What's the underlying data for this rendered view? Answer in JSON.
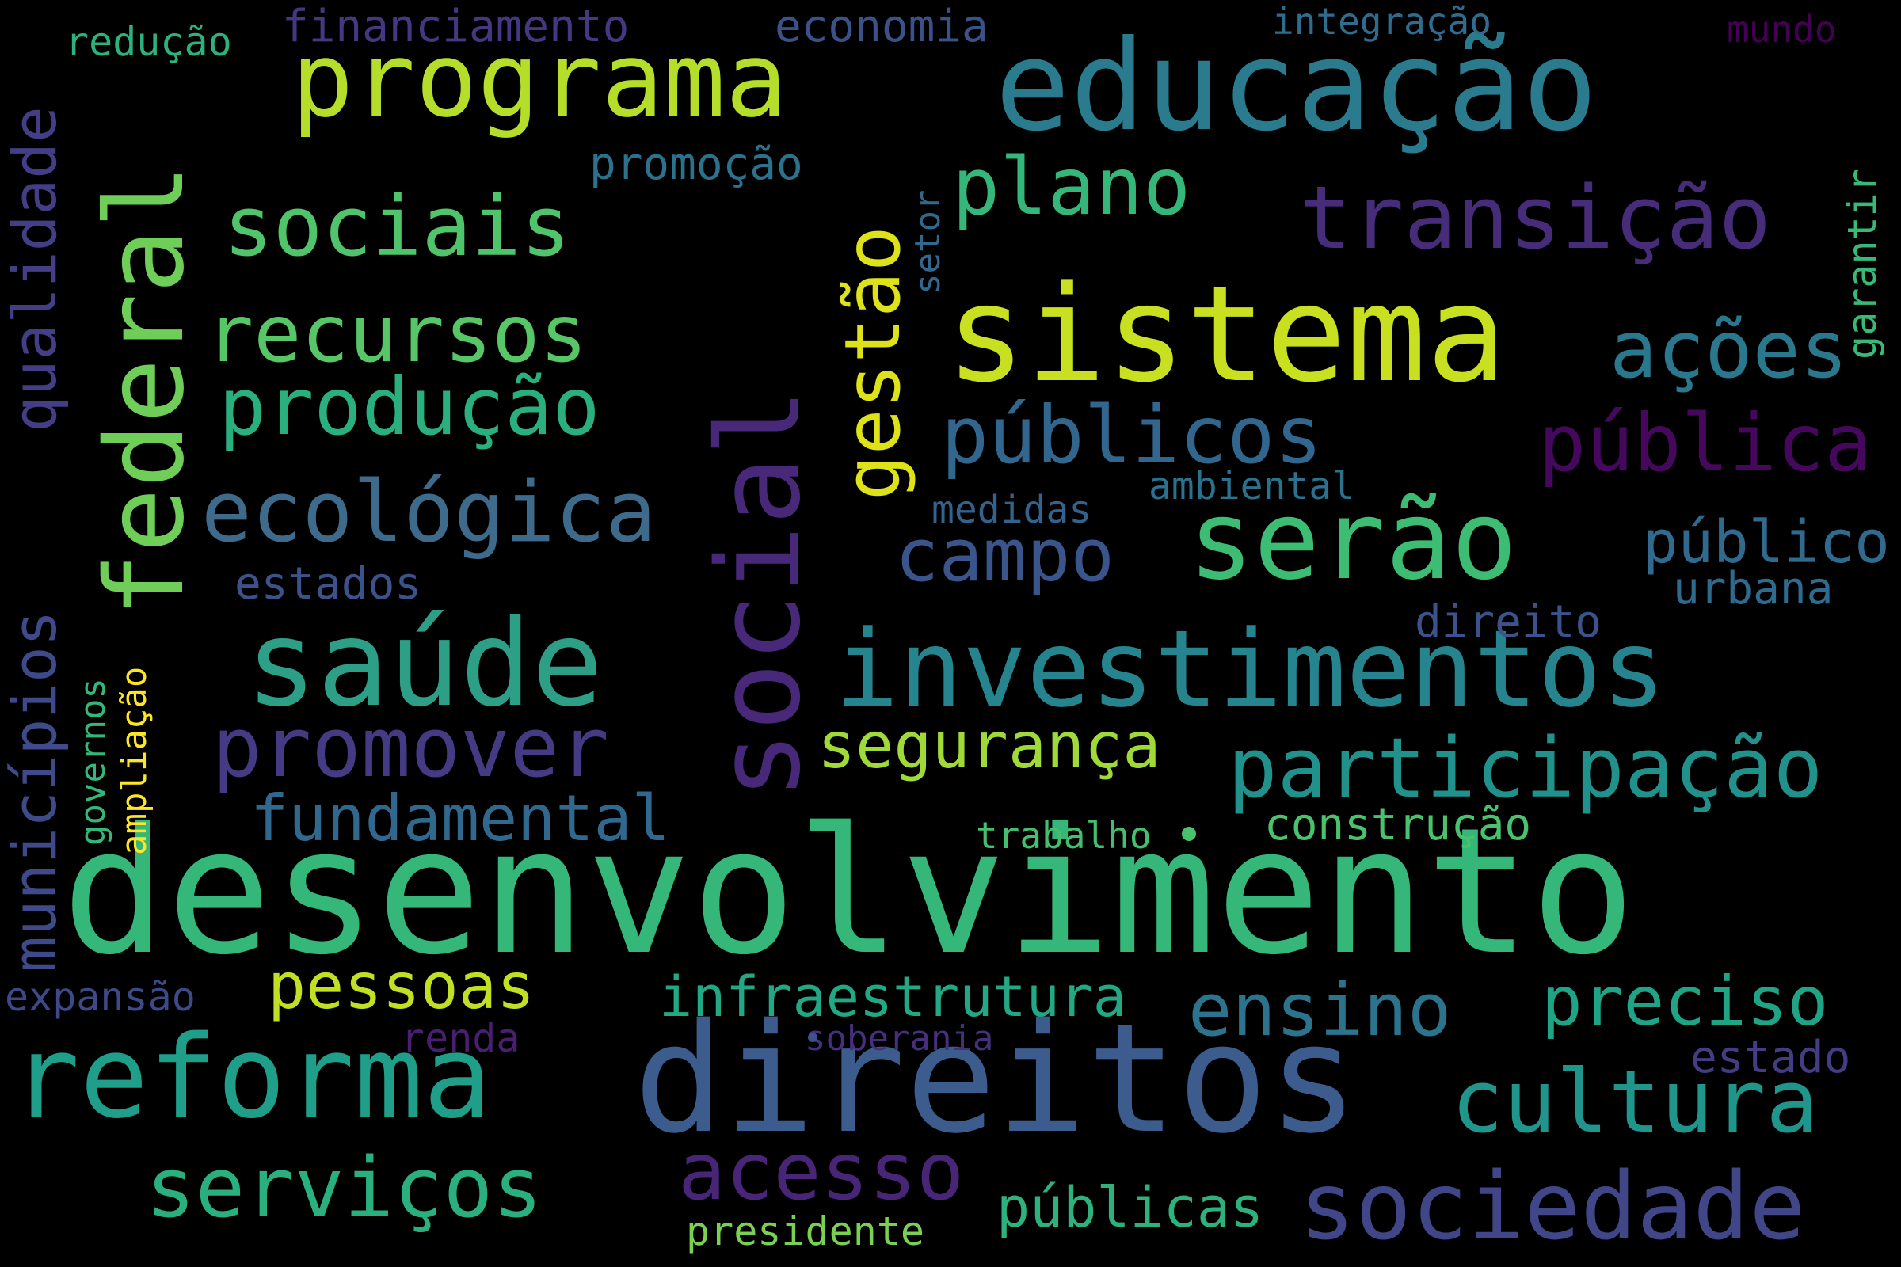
{
  "words": {
    "desenvolvimento": {
      "text": "desenvolvimento",
      "color": "#35b779"
    },
    "direitos": {
      "text": "direitos",
      "color": "#3b5c8c"
    },
    "social": {
      "text": "social",
      "color": "#482878"
    },
    "sistema": {
      "text": "sistema",
      "color": "#c8e020"
    },
    "educacao": {
      "text": "educação",
      "color": "#2a7b8e"
    },
    "investimentos": {
      "text": "investimentos",
      "color": "#26848e"
    },
    "saude": {
      "text": "saúde",
      "color": "#2e9f87"
    },
    "federal": {
      "text": "federal",
      "color": "#6ece58"
    },
    "reforma": {
      "text": "reforma",
      "color": "#1f9e89"
    },
    "serao": {
      "text": "serão",
      "color": "#3dbc74"
    },
    "programa": {
      "text": "programa",
      "color": "#b5de2b"
    },
    "sociedade": {
      "text": "sociedade",
      "color": "#404688"
    },
    "participacao": {
      "text": "participação",
      "color": "#21918c"
    },
    "transicao": {
      "text": "transição",
      "color": "#472c7a"
    },
    "cultura": {
      "text": "cultura",
      "color": "#1f958b"
    },
    "ecologica": {
      "text": "ecológica",
      "color": "#3e6a8b"
    },
    "promover": {
      "text": "promover",
      "color": "#443b84"
    },
    "servicos": {
      "text": "serviços",
      "color": "#2ab07f"
    },
    "acesso": {
      "text": "acesso",
      "color": "#482576"
    },
    "sociais": {
      "text": "sociais",
      "color": "#4fc46a"
    },
    "publicos": {
      "text": "públicos",
      "color": "#31668e"
    },
    "publica": {
      "text": "pública",
      "color": "#46085c"
    },
    "recursos": {
      "text": "recursos",
      "color": "#56c667"
    },
    "producao": {
      "text": "produção",
      "color": "#2ab07f"
    },
    "acoes": {
      "text": "ações",
      "color": "#2a788e"
    },
    "gestao": {
      "text": "gestão",
      "color": "#dde318"
    },
    "plano": {
      "text": "plano",
      "color": "#35b779"
    },
    "campo": {
      "text": "campo",
      "color": "#3a548c"
    },
    "ensino": {
      "text": "ensino",
      "color": "#2c738e"
    },
    "preciso": {
      "text": "preciso",
      "color": "#20a486"
    },
    "publico": {
      "text": "público",
      "color": "#306a8e"
    },
    "qualidade": {
      "text": "qualidade",
      "color": "#433e85"
    },
    "municipios": {
      "text": "municípios",
      "color": "#3e4a89"
    },
    "seguranca": {
      "text": "segurança",
      "color": "#a0da39"
    },
    "fundamental": {
      "text": "fundamental",
      "color": "#31688e"
    },
    "pessoas": {
      "text": "pessoas",
      "color": "#c2df23"
    },
    "infraestrutura": {
      "text": "infraestrutura",
      "color": "#22a884"
    },
    "publicas": {
      "text": "públicas",
      "color": "#2db27d"
    },
    "construcao": {
      "text": "construção",
      "color": "#4ac16d"
    },
    "promocao": {
      "text": "promoção",
      "color": "#2c728e"
    },
    "estados": {
      "text": "estados",
      "color": "#3b528b"
    },
    "direito": {
      "text": "direito",
      "color": "#3b528b"
    },
    "urbana": {
      "text": "urbana",
      "color": "#2f6b8e"
    },
    "estado": {
      "text": "estado",
      "color": "#433d84"
    },
    "financiamento": {
      "text": "financiamento",
      "color": "#453781"
    },
    "economia": {
      "text": "economia",
      "color": "#3b5289"
    },
    "integracao": {
      "text": "integração",
      "color": "#2f6c8e"
    },
    "mundo": {
      "text": "mundo",
      "color": "#440154"
    },
    "reducao": {
      "text": "redução",
      "color": "#2db27d"
    },
    "garantir": {
      "text": "garantir",
      "color": "#39b977"
    },
    "setor": {
      "text": "setor",
      "color": "#31688e"
    },
    "medidas": {
      "text": "medidas",
      "color": "#33638d"
    },
    "ambiental": {
      "text": "ambiental",
      "color": "#2c718e"
    },
    "governos": {
      "text": "governos",
      "color": "#35b779"
    },
    "ampliacao": {
      "text": "ampliação",
      "color": "#fde725"
    },
    "expansao": {
      "text": "expansão",
      "color": "#3e4989"
    },
    "renda": {
      "text": "renda",
      "color": "#481f71"
    },
    "soberania": {
      "text": "soberania",
      "color": "#46307e"
    },
    "trabalho": {
      "text": "trabalho",
      "color": "#44bf70"
    },
    "presidente": {
      "text": "presidente",
      "color": "#7ad151"
    }
  },
  "dots": {
    "dot_1": {
      "color": "#4ac16d"
    },
    "dot_2": {
      "color": "#3b528b"
    }
  }
}
